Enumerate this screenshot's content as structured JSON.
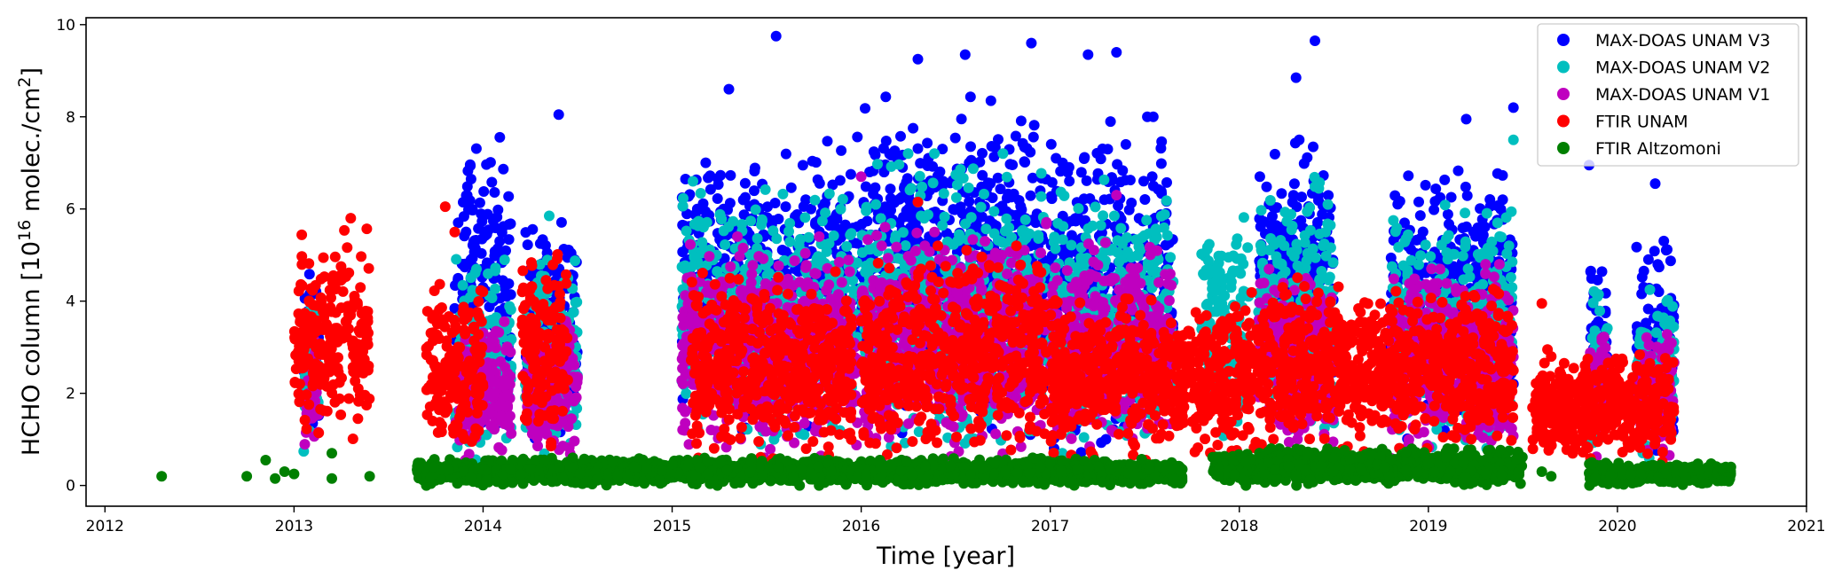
{
  "chart_data": {
    "type": "scatter",
    "title": "",
    "xlabel": "Time [year]",
    "ylabel_parts": {
      "prefix": "HCHO column [10",
      "exp": "16",
      "mid": " molec./cm",
      "exp2": "2",
      "suffix": "]"
    },
    "xlim": [
      2011.9,
      2021.0
    ],
    "ylim": [
      -0.45,
      10.15
    ],
    "xticks": [
      2012,
      2013,
      2014,
      2015,
      2016,
      2017,
      2018,
      2019,
      2020,
      2021
    ],
    "yticks": [
      0,
      2,
      4,
      6,
      8,
      10
    ],
    "grid": false,
    "legend_position": "upper right",
    "series": [
      {
        "name": "MAX-DOAS UNAM V3",
        "color": "#0000ff",
        "clusters": [
          {
            "x": [
              2013.05,
              2013.13
            ],
            "y": [
              0.6,
              5.5
            ]
          },
          {
            "x": [
              2013.85,
              2014.15
            ],
            "y": [
              0.8,
              7.6
            ]
          },
          {
            "x": [
              2014.22,
              2014.5
            ],
            "y": [
              0.8,
              6.3
            ]
          },
          {
            "x": [
              2015.05,
              2015.98
            ],
            "y": [
              1.2,
              7.6
            ]
          },
          {
            "x": [
              2016.0,
              2016.98
            ],
            "y": [
              1.0,
              8.6
            ]
          },
          {
            "x": [
              2017.0,
              2017.65
            ],
            "y": [
              0.6,
              8.0
            ]
          },
          {
            "x": [
              2018.1,
              2018.5
            ],
            "y": [
              1.5,
              7.5
            ]
          },
          {
            "x": [
              2018.8,
              2019.45
            ],
            "y": [
              1.0,
              7.0
            ]
          },
          {
            "x": [
              2019.85,
              2019.95
            ],
            "y": [
              0.6,
              5.7
            ]
          },
          {
            "x": [
              2020.1,
              2020.3
            ],
            "y": [
              0.6,
              5.6
            ]
          }
        ],
        "outliers": [
          [
            2014.4,
            8.05
          ],
          [
            2015.55,
            9.75
          ],
          [
            2015.3,
            8.6
          ],
          [
            2016.3,
            9.25
          ],
          [
            2016.55,
            9.35
          ],
          [
            2016.9,
            9.6
          ],
          [
            2017.2,
            9.35
          ],
          [
            2017.35,
            9.4
          ],
          [
            2018.4,
            9.65
          ],
          [
            2018.3,
            8.85
          ],
          [
            2019.2,
            7.95
          ],
          [
            2019.45,
            8.2
          ],
          [
            2020.2,
            6.55
          ],
          [
            2019.85,
            6.95
          ]
        ]
      },
      {
        "name": "MAX-DOAS UNAM V2",
        "color": "#00bfbf",
        "clusters": [
          {
            "x": [
              2013.05,
              2013.13
            ],
            "y": [
              0.6,
              4.5
            ]
          },
          {
            "x": [
              2013.85,
              2014.15
            ],
            "y": [
              0.5,
              5.0
            ]
          },
          {
            "x": [
              2014.22,
              2014.5
            ],
            "y": [
              0.6,
              5.0
            ]
          },
          {
            "x": [
              2015.05,
              2015.98
            ],
            "y": [
              0.8,
              6.6
            ]
          },
          {
            "x": [
              2016.0,
              2016.98
            ],
            "y": [
              0.6,
              7.2
            ]
          },
          {
            "x": [
              2017.0,
              2017.65
            ],
            "y": [
              0.3,
              6.8
            ]
          },
          {
            "x": [
              2017.8,
              2018.05
            ],
            "y": [
              1.0,
              6.0
            ]
          },
          {
            "x": [
              2018.1,
              2018.5
            ],
            "y": [
              0.8,
              6.7
            ]
          },
          {
            "x": [
              2018.8,
              2019.45
            ],
            "y": [
              0.6,
              6.2
            ]
          },
          {
            "x": [
              2019.85,
              2019.95
            ],
            "y": [
              0.4,
              4.6
            ]
          },
          {
            "x": [
              2020.1,
              2020.3
            ],
            "y": [
              0.5,
              4.5
            ]
          }
        ],
        "outliers": [
          [
            2014.35,
            5.85
          ],
          [
            2017.6,
            0.3
          ],
          [
            2019.45,
            7.5
          ],
          [
            2016.75,
            7.2
          ]
        ]
      },
      {
        "name": "MAX-DOAS UNAM V1",
        "color": "#bf00bf",
        "clusters": [
          {
            "x": [
              2013.05,
              2013.13
            ],
            "y": [
              0.5,
              3.5
            ]
          },
          {
            "x": [
              2013.85,
              2014.15
            ],
            "y": [
              0.4,
              3.6
            ]
          },
          {
            "x": [
              2014.22,
              2014.5
            ],
            "y": [
              0.5,
              3.8
            ]
          },
          {
            "x": [
              2015.05,
              2015.98
            ],
            "y": [
              0.6,
              5.4
            ]
          },
          {
            "x": [
              2016.0,
              2016.98
            ],
            "y": [
              0.5,
              5.8
            ]
          },
          {
            "x": [
              2017.0,
              2017.65
            ],
            "y": [
              0.4,
              5.5
            ]
          },
          {
            "x": [
              2018.1,
              2018.5
            ],
            "y": [
              0.5,
              5.0
            ]
          },
          {
            "x": [
              2018.8,
              2019.45
            ],
            "y": [
              0.5,
              4.8
            ]
          },
          {
            "x": [
              2019.85,
              2019.95
            ],
            "y": [
              0.4,
              3.8
            ]
          },
          {
            "x": [
              2020.1,
              2020.3
            ],
            "y": [
              0.4,
              3.6
            ]
          }
        ],
        "outliers": [
          [
            2016.0,
            6.7
          ],
          [
            2017.35,
            6.3
          ]
        ]
      },
      {
        "name": "FTIR UNAM",
        "color": "#ff0000",
        "clusters": [
          {
            "x": [
              2013.0,
              2013.4
            ],
            "y": [
              0.9,
              5.6
            ]
          },
          {
            "x": [
              2013.7,
              2014.0
            ],
            "y": [
              0.5,
              4.4
            ]
          },
          {
            "x": [
              2014.2,
              2014.45
            ],
            "y": [
              0.4,
              5.6
            ]
          },
          {
            "x": [
              2015.1,
              2015.95
            ],
            "y": [
              0.5,
              4.7
            ]
          },
          {
            "x": [
              2016.0,
              2016.98
            ],
            "y": [
              0.5,
              5.2
            ]
          },
          {
            "x": [
              2017.0,
              2017.95
            ],
            "y": [
              0.5,
              4.2
            ]
          },
          {
            "x": [
              2017.95,
              2018.55
            ],
            "y": [
              0.5,
              4.6
            ]
          },
          {
            "x": [
              2018.55,
              2019.45
            ],
            "y": [
              0.6,
              4.4
            ]
          },
          {
            "x": [
              2019.55,
              2020.3
            ],
            "y": [
              0.4,
              3.0
            ]
          }
        ],
        "outliers": [
          [
            2013.3,
            5.8
          ],
          [
            2013.8,
            6.05
          ],
          [
            2013.85,
            5.5
          ],
          [
            2019.6,
            3.95
          ],
          [
            2016.3,
            6.15
          ],
          [
            2019.65,
            2.8
          ],
          [
            2019.95,
            1.0
          ]
        ]
      },
      {
        "name": "FTIR Altzomoni",
        "color": "#007f00",
        "clusters": [
          {
            "x": [
              2013.65,
              2015.95
            ],
            "y": [
              0.0,
              0.6
            ]
          },
          {
            "x": [
              2015.95,
              2017.7
            ],
            "y": [
              0.0,
              0.6
            ]
          },
          {
            "x": [
              2017.85,
              2019.5
            ],
            "y": [
              0.0,
              0.8
            ]
          },
          {
            "x": [
              2019.85,
              2020.6
            ],
            "y": [
              0.0,
              0.5
            ]
          }
        ],
        "outliers": [
          [
            2012.3,
            0.2
          ],
          [
            2012.75,
            0.2
          ],
          [
            2012.85,
            0.55
          ],
          [
            2012.9,
            0.15
          ],
          [
            2012.95,
            0.3
          ],
          [
            2013.0,
            0.25
          ],
          [
            2013.2,
            0.15
          ],
          [
            2013.4,
            0.2
          ],
          [
            2013.2,
            0.7
          ],
          [
            2019.6,
            0.3
          ],
          [
            2019.65,
            0.2
          ],
          [
            2020.6,
            0.4
          ],
          [
            2020.55,
            0.1
          ]
        ]
      }
    ]
  }
}
